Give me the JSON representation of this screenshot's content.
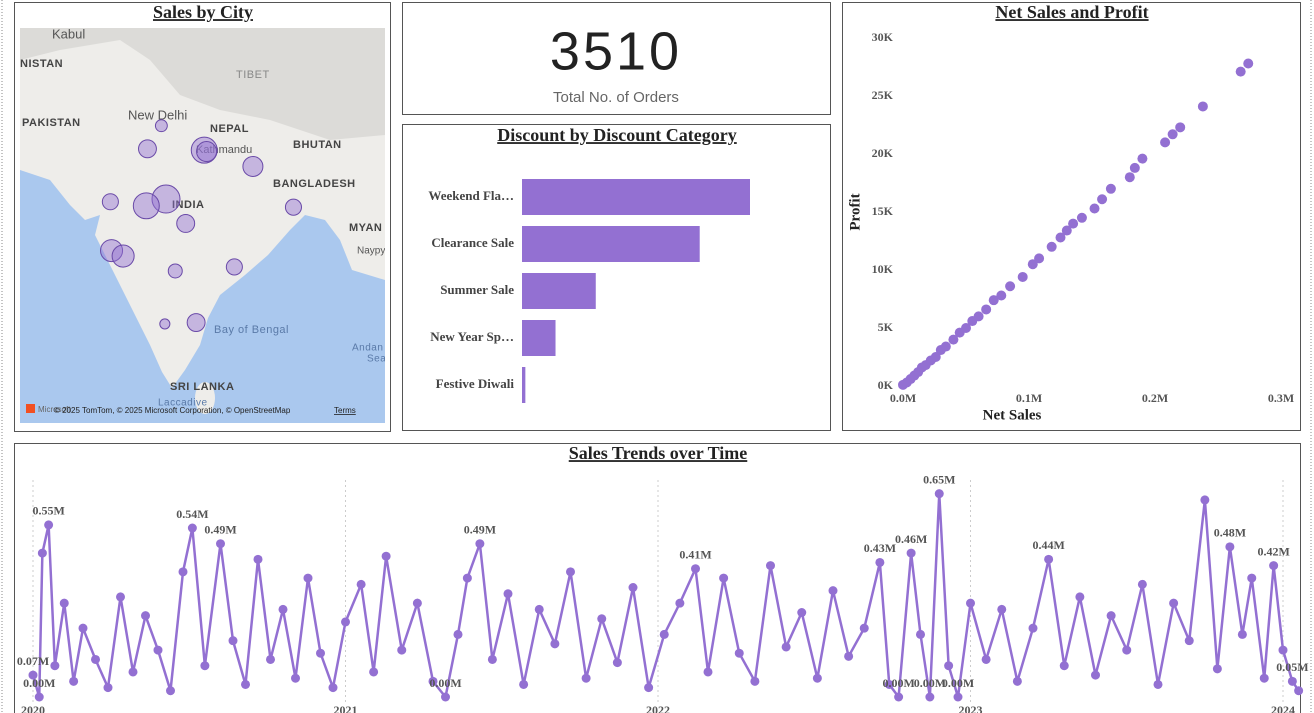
{
  "chart_data": [
    {
      "type": "map",
      "title": "Sales by City",
      "color": "#9370d2",
      "lonlim": [
        65,
        96.5
      ],
      "latlim": [
        6.7,
        35.8
      ],
      "lon": [
        77.2,
        76.0,
        80.9,
        81.1,
        85.1,
        77.6,
        75.9,
        72.8,
        79.3,
        88.6,
        72.9,
        73.9,
        78.4,
        83.5,
        77.5,
        80.2
      ],
      "lat": [
        28.6,
        26.9,
        26.8,
        26.7,
        25.6,
        23.2,
        22.7,
        23.0,
        21.4,
        22.6,
        19.4,
        19.0,
        17.9,
        18.2,
        14.0,
        14.1
      ],
      "sizes": [
        18,
        41,
        86,
        51,
        51,
        100,
        86,
        33,
        41,
        33,
        62,
        62,
        25,
        33,
        13,
        41
      ],
      "labels": [
        "Kabul",
        "NISTAN",
        "TIBET",
        "PAKISTAN",
        "New Delhi",
        "NEPAL",
        "Kathmandu",
        "BHUTAN",
        "BANGLADESH",
        "INDIA",
        "MYAN",
        "Naypy",
        "Bay of Bengal",
        "Andan",
        "Sea",
        "SRI LANKA",
        "Laccadive",
        "Microsoft",
        "© 2025 TomTom, © 2025 Microsoft Corporation, © OpenStreetMap",
        "Terms"
      ]
    },
    {
      "type": "card",
      "value": 3510,
      "label": "Total No. of Orders"
    },
    {
      "type": "bar",
      "title": "Discount by Discount Category",
      "color": "#9370d2",
      "categories": [
        "Weekend Fla…",
        "Clearance Sale",
        "Summer Sale",
        "New Year Sp…",
        "Festive Diwali"
      ],
      "values": [
        68,
        53,
        22,
        10,
        1
      ]
    },
    {
      "type": "scatter",
      "title": "Net Sales and Profit",
      "color": "#9370d2",
      "xlabel": "Net Sales",
      "ylabel": "Profit",
      "xlim": [
        0,
        300000
      ],
      "ylim": [
        0,
        30000
      ],
      "xticks": [
        {
          "value": 0,
          "label": "0.0M"
        },
        {
          "value": 100000,
          "label": "0.1M"
        },
        {
          "value": 200000,
          "label": "0.2M"
        },
        {
          "value": 300000,
          "label": "0.3M"
        }
      ],
      "yticks": [
        {
          "value": 0,
          "label": "0K"
        },
        {
          "value": 5000,
          "label": "5K"
        },
        {
          "value": 10000,
          "label": "10K"
        },
        {
          "value": 15000,
          "label": "15K"
        },
        {
          "value": 20000,
          "label": "20K"
        },
        {
          "value": 25000,
          "label": "25K"
        },
        {
          "value": 30000,
          "label": "30K"
        }
      ],
      "x": [
        0,
        3000,
        6000,
        9000,
        12000,
        15000,
        18000,
        22000,
        26000,
        30000,
        34000,
        40000,
        45000,
        50000,
        55000,
        60000,
        66000,
        72000,
        78000,
        85000,
        95000,
        103000,
        108000,
        118000,
        125000,
        130000,
        135000,
        142000,
        152000,
        158000,
        165000,
        180000,
        184000,
        190000,
        208000,
        214000,
        220000,
        238000,
        268000,
        274000
      ],
      "values": [
        100,
        300,
        600,
        900,
        1200,
        1600,
        1800,
        2200,
        2500,
        3100,
        3400,
        4000,
        4600,
        5000,
        5600,
        6000,
        6600,
        7400,
        7800,
        8600,
        9400,
        10500,
        11000,
        12000,
        12800,
        13400,
        14000,
        14500,
        15300,
        16100,
        17000,
        18000,
        18800,
        19600,
        21000,
        21700,
        22300,
        24100,
        27100,
        27800
      ]
    },
    {
      "type": "line",
      "title": "Sales Trends over Time",
      "color": "#9370d2",
      "xlim": [
        2020,
        2024
      ],
      "ylim": [
        0,
        700000
      ],
      "grid": true,
      "xticks": [
        2020,
        2021,
        2022,
        2023,
        2024
      ],
      "x": [
        2020.0,
        2020.02,
        2020.03,
        2020.05,
        2020.07,
        2020.1,
        2020.13,
        2020.16,
        2020.2,
        2020.24,
        2020.28,
        2020.32,
        2020.36,
        2020.4,
        2020.44,
        2020.48,
        2020.51,
        2020.55,
        2020.6,
        2020.64,
        2020.68,
        2020.72,
        2020.76,
        2020.8,
        2020.84,
        2020.88,
        2020.92,
        2020.96,
        2021.0,
        2021.05,
        2021.09,
        2021.13,
        2021.18,
        2021.23,
        2021.28,
        2021.32,
        2021.36,
        2021.39,
        2021.43,
        2021.47,
        2021.52,
        2021.57,
        2021.62,
        2021.67,
        2021.72,
        2021.77,
        2021.82,
        2021.87,
        2021.92,
        2021.97,
        2022.02,
        2022.07,
        2022.12,
        2022.16,
        2022.21,
        2022.26,
        2022.31,
        2022.36,
        2022.41,
        2022.46,
        2022.51,
        2022.56,
        2022.61,
        2022.66,
        2022.71,
        2022.74,
        2022.77,
        2022.81,
        2022.84,
        2022.87,
        2022.9,
        2022.93,
        2022.96,
        2023.0,
        2023.05,
        2023.1,
        2023.15,
        2023.2,
        2023.25,
        2023.3,
        2023.35,
        2023.4,
        2023.45,
        2023.5,
        2023.55,
        2023.6,
        2023.65,
        2023.7,
        2023.75,
        2023.79,
        2023.83,
        2023.87,
        2023.9,
        2023.94,
        2023.97,
        2024.0,
        2024.03,
        2024.05
      ],
      "values": [
        70000,
        0,
        460000,
        550000,
        100000,
        300000,
        50000,
        220000,
        120000,
        30000,
        320000,
        80000,
        260000,
        150000,
        20000,
        400000,
        540000,
        100000,
        490000,
        180000,
        40000,
        440000,
        120000,
        280000,
        60000,
        380000,
        140000,
        30000,
        240000,
        360000,
        80000,
        450000,
        150000,
        300000,
        50000,
        0,
        200000,
        380000,
        490000,
        120000,
        330000,
        40000,
        280000,
        170000,
        400000,
        60000,
        250000,
        110000,
        350000,
        30000,
        200000,
        300000,
        410000,
        80000,
        380000,
        140000,
        50000,
        420000,
        160000,
        270000,
        60000,
        340000,
        130000,
        220000,
        430000,
        40000,
        0,
        460000,
        200000,
        0,
        650000,
        100000,
        0,
        300000,
        120000,
        280000,
        50000,
        220000,
        440000,
        100000,
        320000,
        70000,
        260000,
        150000,
        360000,
        40000,
        300000,
        180000,
        630000,
        90000,
        480000,
        200000,
        380000,
        60000,
        420000,
        150000,
        50000,
        20000
      ],
      "value_labels": [
        "0.07M",
        "0.00M",
        null,
        "0.55M",
        null,
        null,
        null,
        null,
        null,
        null,
        null,
        null,
        null,
        null,
        null,
        null,
        "0.54M",
        null,
        "0.49M",
        null,
        null,
        null,
        null,
        null,
        null,
        null,
        null,
        null,
        null,
        null,
        null,
        null,
        null,
        null,
        null,
        "0.00M",
        null,
        null,
        "0.49M",
        null,
        null,
        null,
        null,
        null,
        null,
        null,
        null,
        null,
        null,
        null,
        null,
        null,
        "0.41M",
        null,
        null,
        null,
        null,
        null,
        null,
        null,
        null,
        null,
        null,
        null,
        "0.43M",
        null,
        "0.00M",
        "0.46M",
        null,
        "0.00M",
        "0.65M",
        null,
        "0.00M",
        null,
        null,
        null,
        null,
        null,
        "0.44M",
        null,
        null,
        null,
        null,
        null,
        null,
        null,
        null,
        null,
        null,
        null,
        "0.48M",
        null,
        null,
        null,
        "0.42M",
        null,
        "0.05M",
        null
      ]
    }
  ]
}
